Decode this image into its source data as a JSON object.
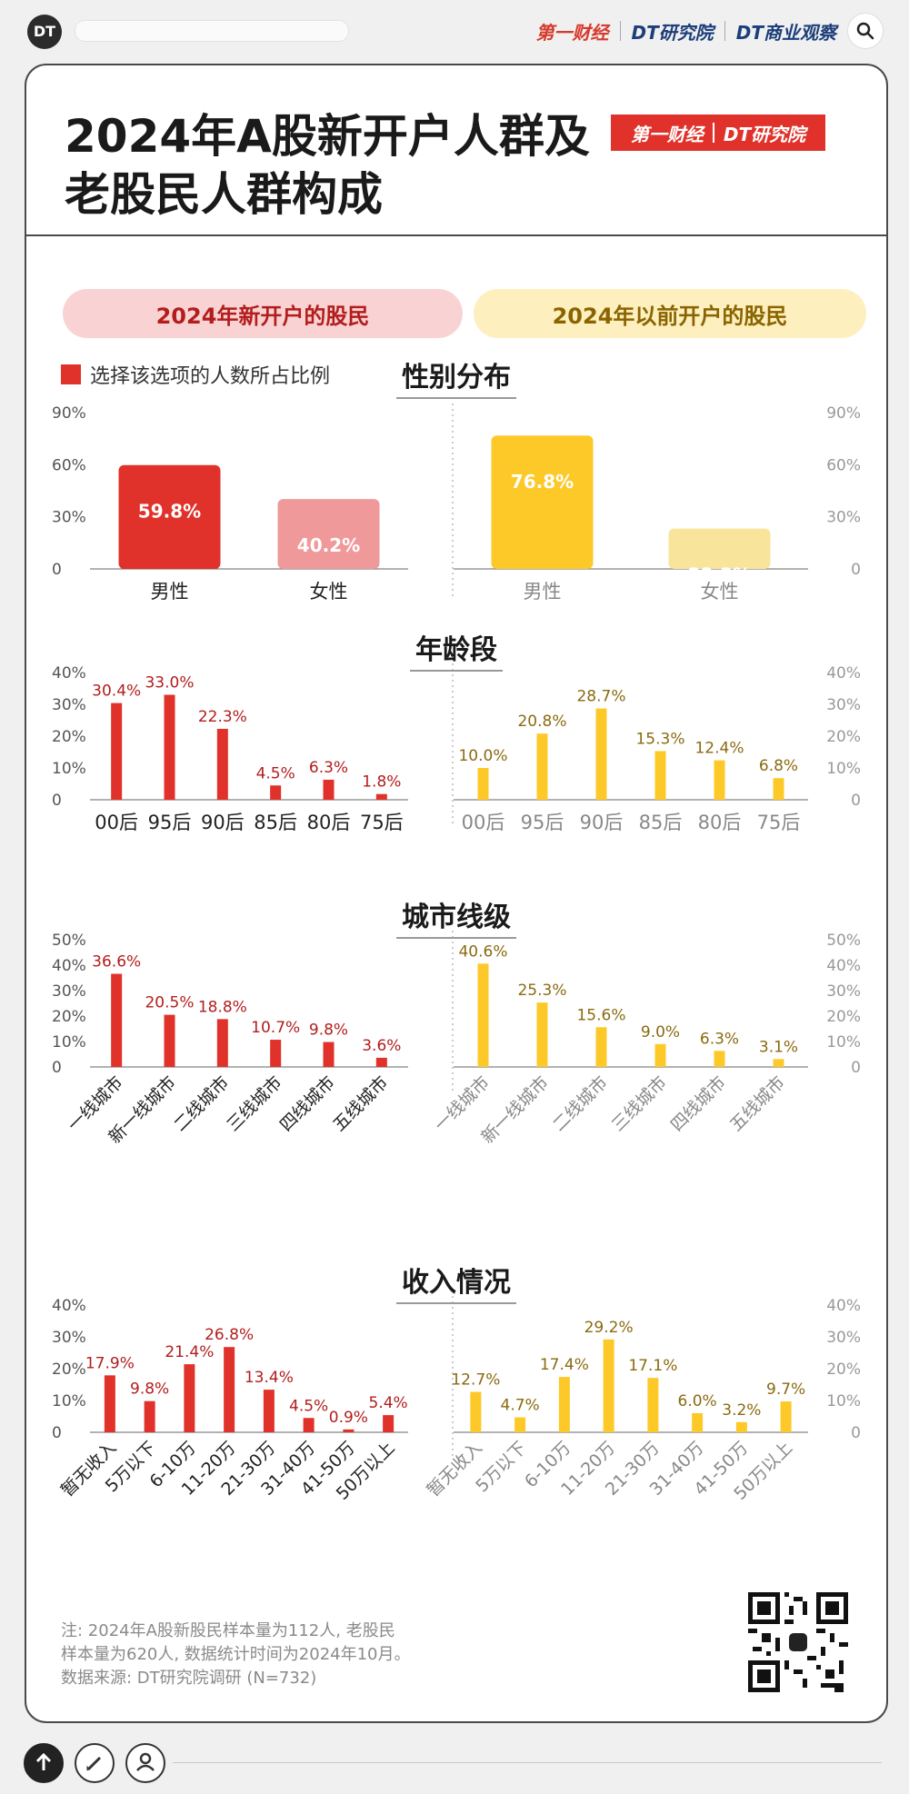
{
  "app": {
    "avatar_text": "DT",
    "brand_yicai": "第一财经",
    "brand_dt": "DT研究院",
    "brand_dtbiz": "DT商业观察"
  },
  "title": {
    "line1": "2024年A股新开户人群及",
    "line2": "老股民人群构成",
    "logo_left": "第一财经",
    "logo_right": "DT研究院"
  },
  "groups": {
    "new": "2024年新开户的股民",
    "old": "2024年以前开户的股民"
  },
  "legend": "选择该选项的人数所占比例",
  "colors": {
    "red": "#e0322b",
    "pink": "#f0999a",
    "yellow": "#fdc928",
    "paleYellow": "#f8e59b",
    "redLabel": "#b31d1d",
    "yellowLabel": "#8a6a10"
  },
  "chart_data": [
    {
      "type": "bar",
      "title": "性别分布",
      "categories": [
        "男性",
        "女性"
      ],
      "ylim": [
        0,
        90
      ],
      "yticks": [
        0,
        30,
        60,
        90
      ],
      "series": [
        {
          "name": "2024年新开户的股民",
          "values": [
            59.8,
            40.2
          ]
        },
        {
          "name": "2024年以前开户的股民",
          "values": [
            76.8,
            23.2
          ]
        }
      ]
    },
    {
      "type": "bar",
      "title": "年龄段",
      "categories": [
        "00后",
        "95后",
        "90后",
        "85后",
        "80后",
        "75后"
      ],
      "ylim": [
        0,
        40
      ],
      "yticks": [
        0,
        10,
        20,
        30,
        40
      ],
      "series": [
        {
          "name": "2024年新开户的股民",
          "values": [
            30.4,
            33.0,
            22.3,
            4.5,
            6.3,
            1.8
          ]
        },
        {
          "name": "2024年以前开户的股民",
          "values": [
            10.0,
            20.8,
            28.7,
            15.3,
            12.4,
            6.8
          ]
        }
      ]
    },
    {
      "type": "bar",
      "title": "城市线级",
      "categories": [
        "一线城市",
        "新一线城市",
        "二线城市",
        "三线城市",
        "四线城市",
        "五线城市"
      ],
      "ylim": [
        0,
        50
      ],
      "yticks": [
        0,
        10,
        20,
        30,
        40,
        50
      ],
      "series": [
        {
          "name": "2024年新开户的股民",
          "values": [
            36.6,
            20.5,
            18.8,
            10.7,
            9.8,
            3.6
          ]
        },
        {
          "name": "2024年以前开户的股民",
          "values": [
            40.6,
            25.3,
            15.6,
            9.0,
            6.3,
            3.1
          ]
        }
      ]
    },
    {
      "type": "bar",
      "title": "收入情况",
      "categories": [
        "暂无收入",
        "5万以下",
        "6-10万",
        "11-20万",
        "21-30万",
        "31-40万",
        "41-50万",
        "50万以上"
      ],
      "ylim": [
        0,
        40
      ],
      "yticks": [
        0,
        10,
        20,
        30,
        40
      ],
      "series": [
        {
          "name": "2024年新开户的股民",
          "values": [
            17.9,
            9.8,
            21.4,
            26.8,
            13.4,
            4.5,
            0.9,
            5.4
          ]
        },
        {
          "name": "2024年以前开户的股民",
          "values": [
            12.7,
            4.7,
            17.4,
            29.2,
            17.1,
            6.0,
            3.2,
            9.7
          ]
        }
      ]
    }
  ],
  "footer": {
    "note1": "注: 2024年A股新股民样本量为112人, 老股民",
    "note2": "样本量为620人, 数据统计时间为2024年10月。",
    "source": "数据来源: DT研究院调研 (N=732)"
  }
}
